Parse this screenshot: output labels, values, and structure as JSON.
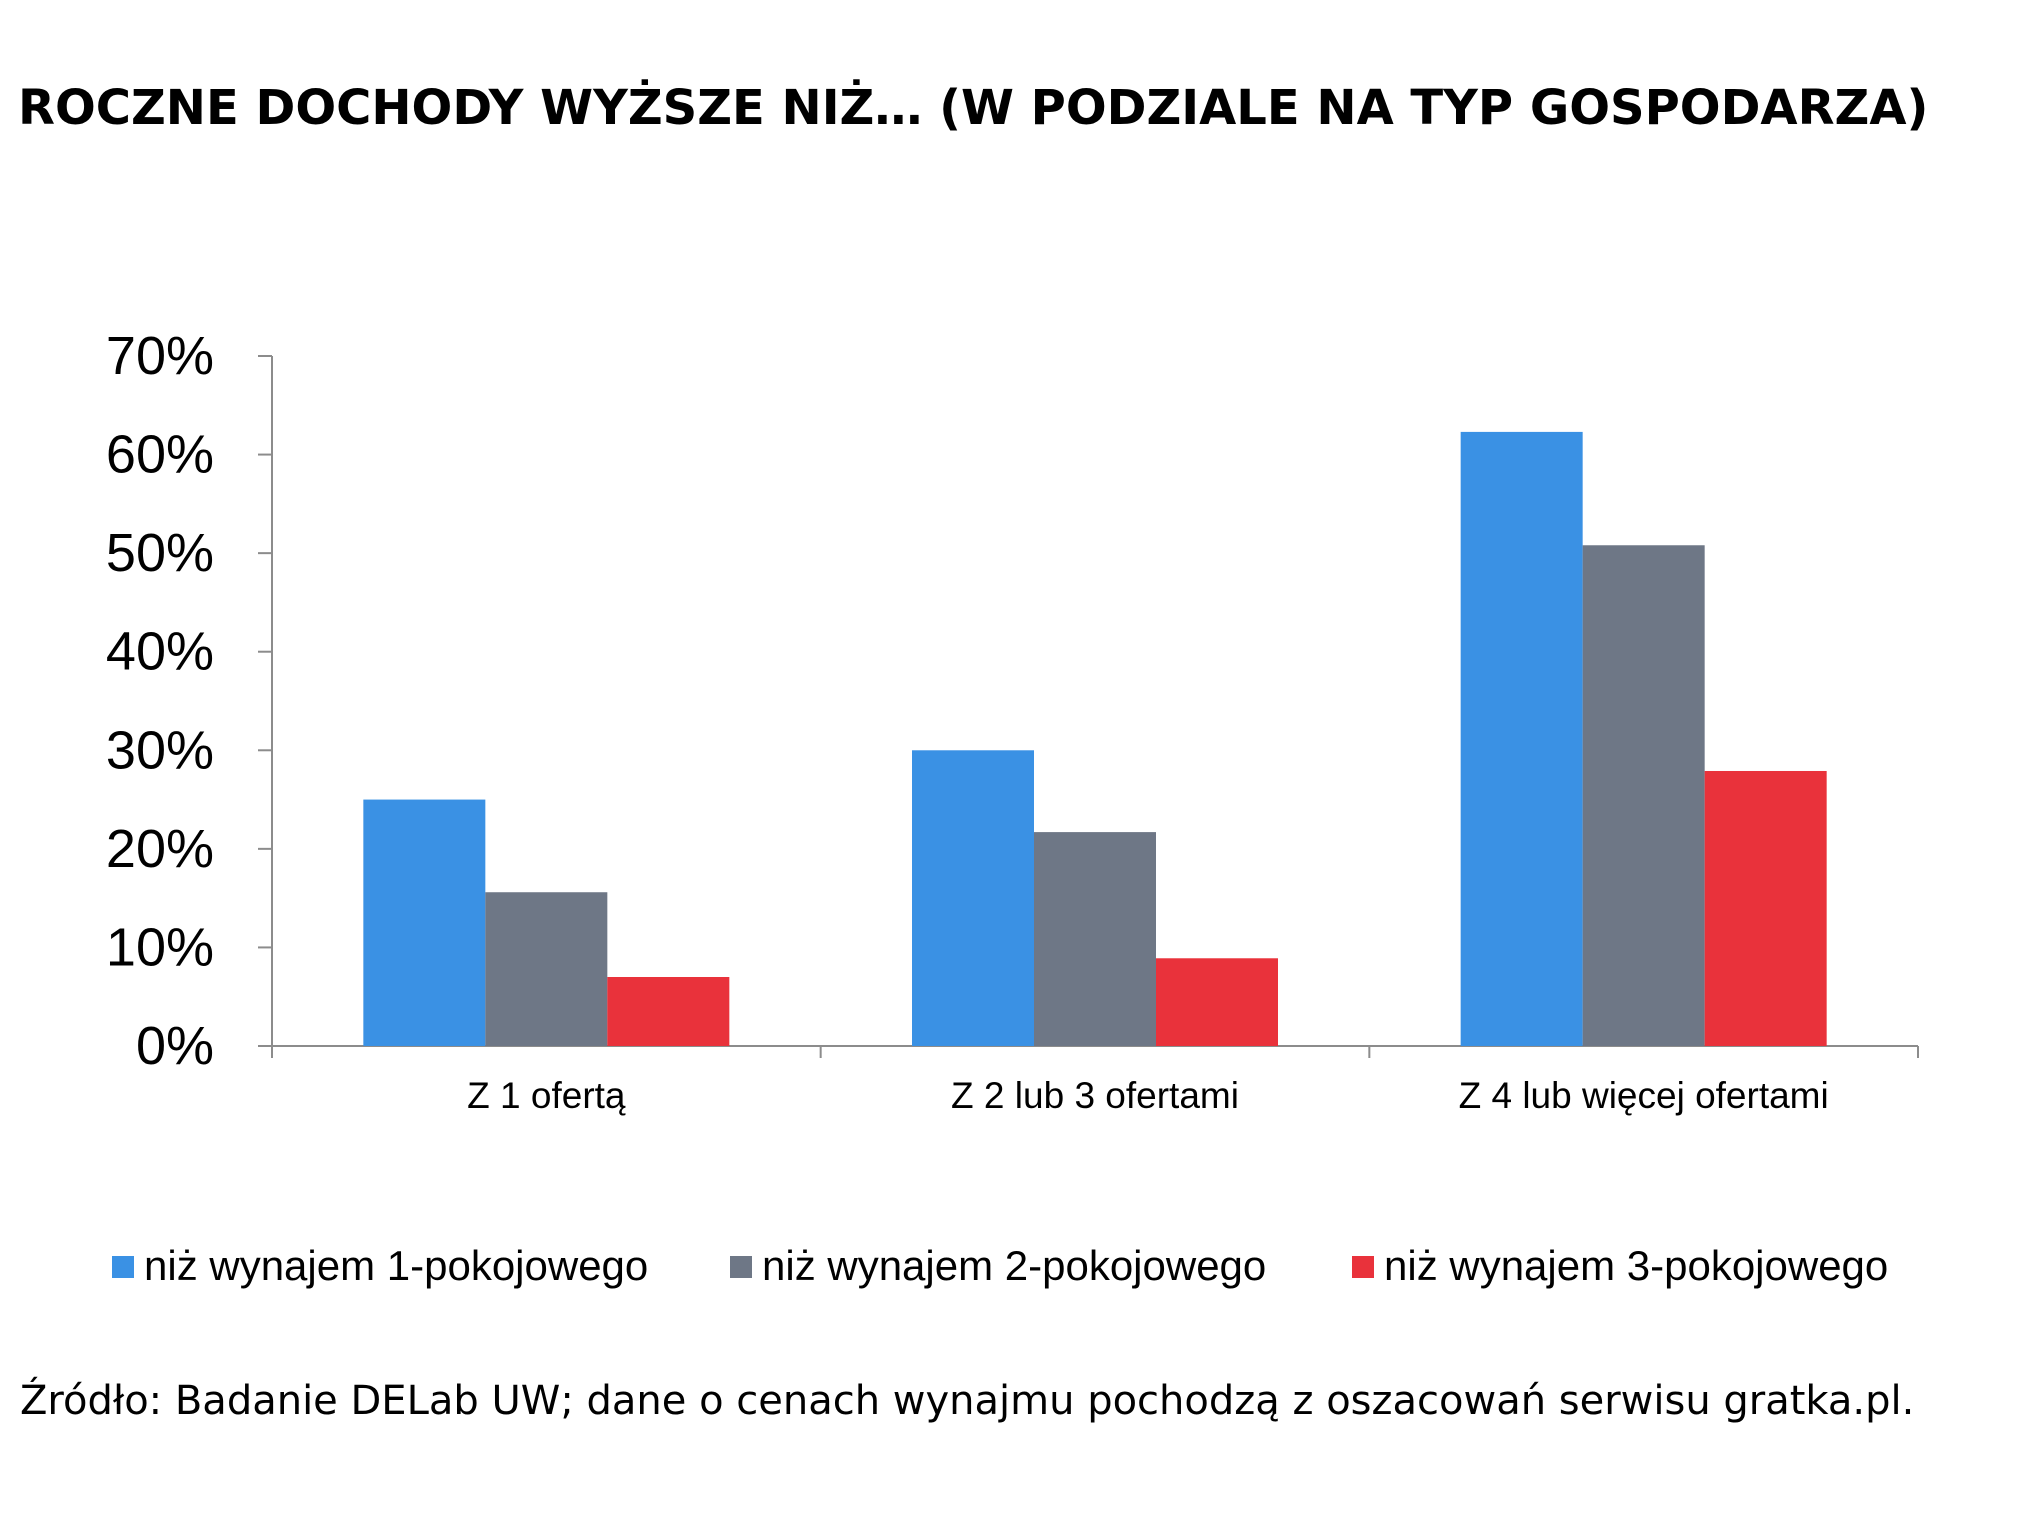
{
  "title": "ROCZNE DOCHODY WYŻSZE NIŻ… (W PODZIALE NA TYP GOSPODARZA)",
  "source": "Źródło: Badanie DELab UW; dane o cenach wynajmu pochodzą z oszacowań serwisu gratka.pl.",
  "chart_data": {
    "type": "bar",
    "categories": [
      "Z 1 ofertą",
      "Z 2 lub 3 ofertami",
      "Z 4 lub więcej ofertami"
    ],
    "series": [
      {
        "name": "niż wynajem 1-pokojowego",
        "color": "#3a91e4",
        "values": [
          25,
          30,
          62.3
        ]
      },
      {
        "name": "niż wynajem 2-pokojowego",
        "color": "#6e7786",
        "values": [
          15.6,
          21.7,
          50.8
        ]
      },
      {
        "name": "niż wynajem 3-pokojowego",
        "color": "#e9323b",
        "values": [
          7,
          8.9,
          27.9
        ]
      }
    ],
    "ylim": [
      0,
      70
    ],
    "yticks": [
      "0%",
      "10%",
      "20%",
      "30%",
      "40%",
      "50%",
      "60%",
      "70%"
    ],
    "grid": false,
    "legend_position": "bottom"
  }
}
